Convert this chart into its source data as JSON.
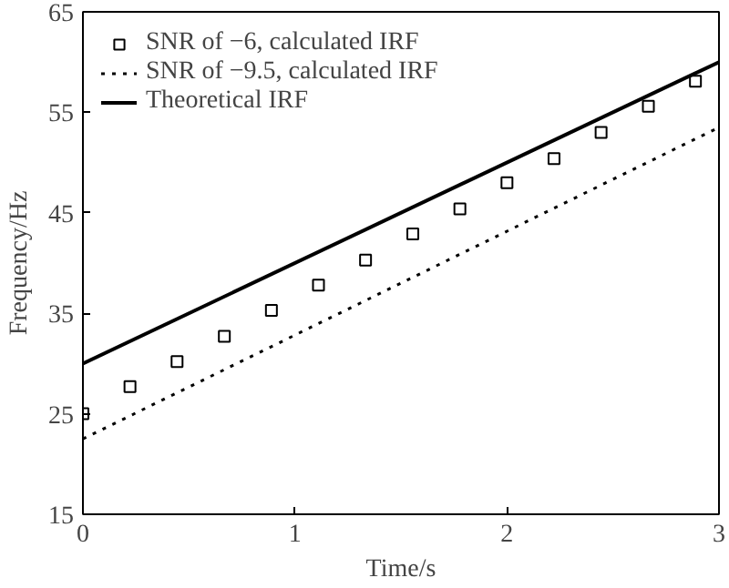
{
  "chart_data": {
    "type": "line",
    "xlabel": "Time/s",
    "ylabel": "Frequency/Hz",
    "xlim": [
      0,
      3
    ],
    "ylim": [
      15,
      65
    ],
    "xticks": [
      0,
      1,
      2,
      3
    ],
    "yticks": [
      15,
      25,
      35,
      45,
      55,
      65
    ],
    "grid": false,
    "legend": "top left",
    "series": [
      {
        "name": "SNR of −6, calculated IRF",
        "type": "scatter",
        "marker": "square",
        "color": "#000000",
        "x": [
          0,
          0.222,
          0.444,
          0.667,
          0.889,
          1.111,
          1.333,
          1.556,
          1.778,
          2.0,
          2.222,
          2.444,
          2.667,
          2.889
        ],
        "values": [
          25,
          27.7,
          30.2,
          32.7,
          35.3,
          37.8,
          40.3,
          42.9,
          45.4,
          48,
          50.4,
          53,
          55.6,
          58.1
        ]
      },
      {
        "name": "SNR of −9.5, calculated IRF",
        "line_style": "dotted",
        "color": "#000000",
        "x": [
          0,
          3
        ],
        "values": [
          22.5,
          53.5
        ]
      },
      {
        "name": "Theoretical IRF",
        "line_style": "solid",
        "color": "#000000",
        "x": [
          0,
          3
        ],
        "values": [
          30,
          60
        ]
      }
    ]
  }
}
